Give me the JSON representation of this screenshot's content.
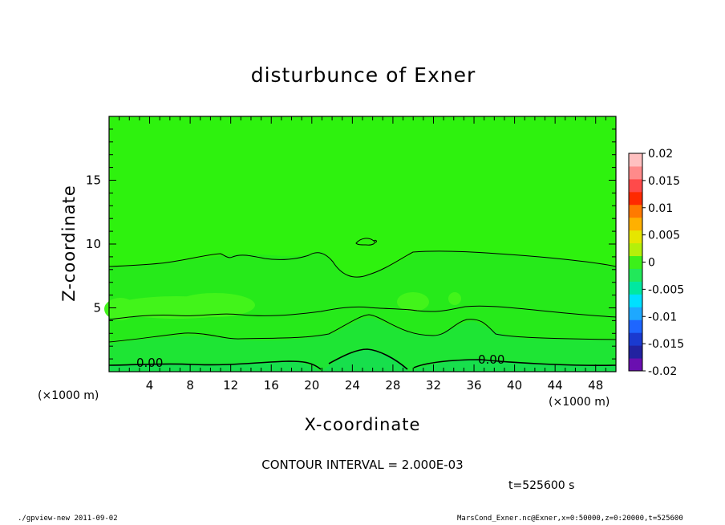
{
  "chart_data": {
    "type": "heatmap",
    "title": "disturbunce of Exner",
    "xlabel": "X-coordinate",
    "ylabel": "Z-coordinate",
    "x_unit": "(×1000 m)",
    "y_unit": "(×1000 m)",
    "xlim": [
      0,
      50
    ],
    "ylim": [
      0,
      20
    ],
    "x_ticks": [
      "4",
      "8",
      "12",
      "16",
      "20",
      "24",
      "28",
      "32",
      "36",
      "40",
      "44",
      "48"
    ],
    "y_ticks": [
      "5",
      "10",
      "15"
    ],
    "colorbar": {
      "labels": [
        "0.02",
        "0.015",
        "0.01",
        "0.005",
        "0",
        "-0.005",
        "-0.01",
        "-0.015",
        "-0.02"
      ],
      "levels": [
        -0.02,
        -0.0175,
        -0.015,
        -0.0125,
        -0.01,
        -0.0075,
        -0.005,
        -0.0025,
        0,
        0.0025,
        0.005,
        0.0075,
        0.01,
        0.0125,
        0.015,
        0.0175,
        0.02
      ],
      "colors": [
        "#6a0fb0",
        "#2222a0",
        "#1a3ad0",
        "#1e66ff",
        "#1ea8ff",
        "#00e0ff",
        "#00e8a0",
        "#22e85a",
        "#3cf01a",
        "#b4f00a",
        "#e6e600",
        "#ffb000",
        "#ff7a00",
        "#ff2a00",
        "#ff4a4a",
        "#ff8a8a",
        "#ffc0c0"
      ]
    },
    "contour_labels": [
      "0.00",
      "0.00"
    ],
    "contour_interval_text": "CONTOUR INTERVAL = 2.000E-03",
    "time_text": "t=525600 s"
  },
  "footer": {
    "left": "./gpview-new  2011-09-02",
    "right": "MarsCond_Exner.nc@Exner,x=0:50000,z=0:20000,t=525600"
  }
}
